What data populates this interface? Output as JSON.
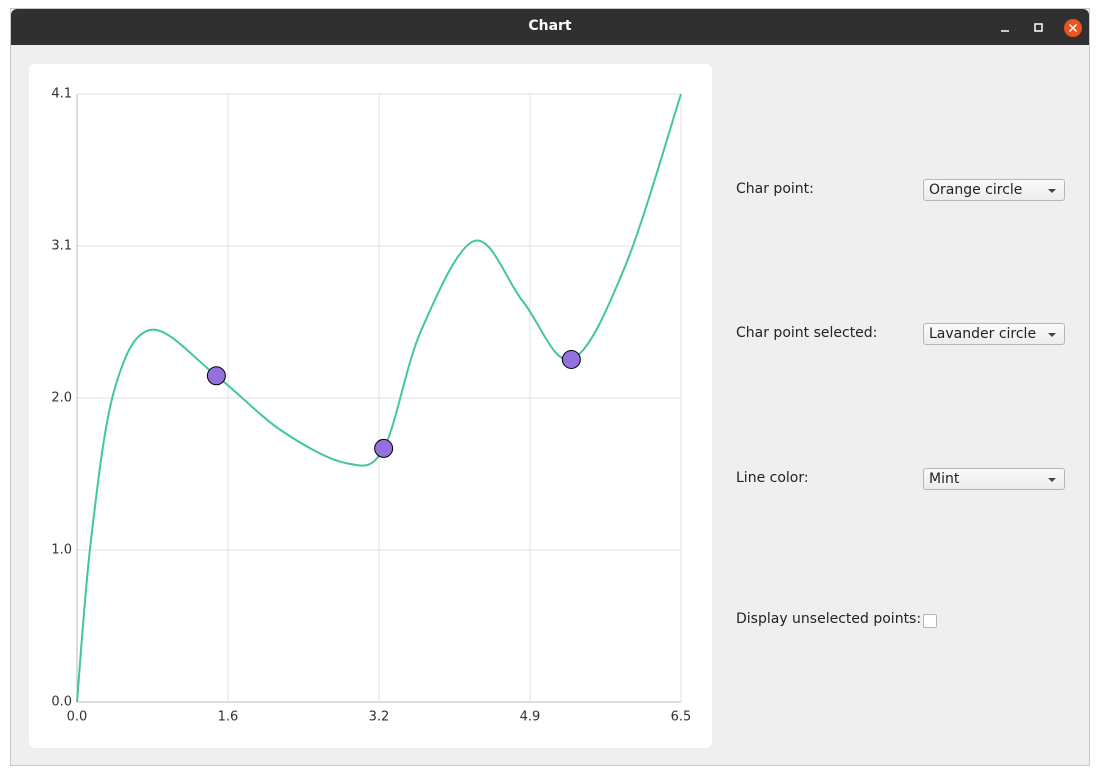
{
  "window": {
    "title": "Chart"
  },
  "chart_data": {
    "type": "line",
    "xlim": [
      0,
      6.5
    ],
    "ylim": [
      0,
      4.1
    ],
    "xticks": [
      {
        "value": 0,
        "label": "0.0"
      },
      {
        "value": 1.625,
        "label": "1.6"
      },
      {
        "value": 3.25,
        "label": "3.2"
      },
      {
        "value": 4.875,
        "label": "4.9"
      },
      {
        "value": 6.5,
        "label": "6.5"
      }
    ],
    "yticks": [
      {
        "value": 0,
        "label": "0.0"
      },
      {
        "value": 1.025,
        "label": "1.0"
      },
      {
        "value": 2.05,
        "label": "2.0"
      },
      {
        "value": 3.075,
        "label": "3.1"
      },
      {
        "value": 4.1,
        "label": "4.1"
      }
    ],
    "grid": true,
    "series": [
      {
        "type": "line",
        "color": "#43c59e",
        "x": [
          0,
          0.15,
          0.4,
          0.8,
          1.5,
          2.2,
          2.9,
          3.3,
          3.7,
          4.28,
          4.8,
          5.32,
          5.9,
          6.5
        ],
        "values": [
          0,
          1.09,
          2.1,
          2.51,
          2.2,
          1.83,
          1.61,
          1.71,
          2.5,
          3.11,
          2.7,
          2.31,
          2.94,
          4.1
        ]
      },
      {
        "type": "scatter",
        "color": "#9370db",
        "x": [
          1.5,
          3.3,
          5.32
        ],
        "values": [
          2.2,
          1.71,
          2.31
        ]
      }
    ]
  },
  "controls": [
    {
      "label": "Char point:",
      "value": "Orange circle"
    },
    {
      "label": "Char point selected:",
      "value": "Lavander circle"
    },
    {
      "label": "Line color:",
      "value": "Mint"
    }
  ],
  "checkbox": {
    "label": "Display unselected points:",
    "checked": false
  }
}
